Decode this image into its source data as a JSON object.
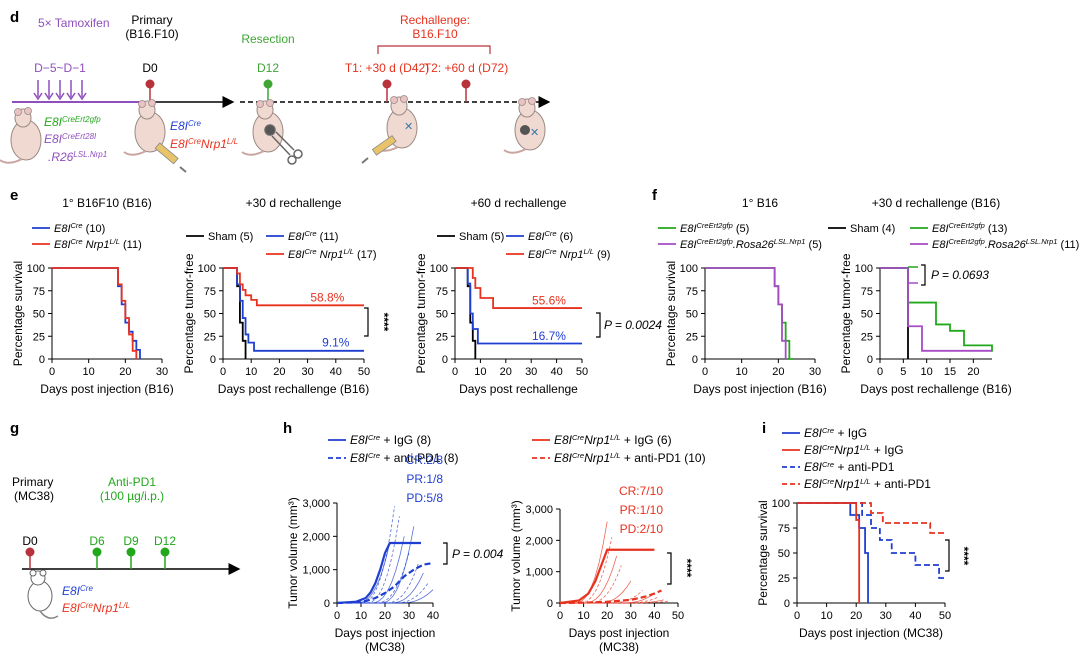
{
  "colors": {
    "blue": "#1f3fd1",
    "red": "#e8321e",
    "green": "#22a81c",
    "purple": "#a64cc6",
    "darkred": "#b8323b",
    "tamox": "#8f4fbf",
    "resection": "#3fa535",
    "text": "#000000"
  },
  "panel_d": {
    "letter": "d",
    "tamoxifen": "5× Tamoxifen",
    "primary_line1": "Primary",
    "primary_line2": "(B16.F10)",
    "resection": "Resection",
    "rechallenge_line1": "Rechallenge:",
    "rechallenge_line2": "B16.F10",
    "day_range": "D−5~D−1",
    "d0": "D0",
    "d12": "D12",
    "t1": "T1: +30 d (D42)",
    "t2": "T2: +60 d (D72)",
    "g1": "E8I",
    "g1s": "CreErt2gfp",
    "g2": "E8I",
    "g2s": "CreErt28I",
    "g3": ".R26",
    "g3s": "LSL.Nrp1",
    "c1": "E8I",
    "c1s": "Cre",
    "c2": "E8I",
    "c2s": "Cre",
    "c2b": "Nrp1",
    "c2bs": "L/L"
  },
  "panel_e": {
    "letter": "e",
    "pval_a": "P = 0.0024",
    "stars": "****"
  },
  "panel_f": {
    "letter": "f",
    "pval": "P = 0.0693"
  },
  "panel_g": {
    "letter": "g",
    "primary_line1": "Primary",
    "primary_line2": "(MC38)",
    "antipd1_line1": "Anti-PD1",
    "antipd1_line2": "(100 µg/i.p.)",
    "d0": "D0",
    "d6": "D6",
    "d9": "D9",
    "d12": "D12",
    "m1": "E8I",
    "m1s": "Cre",
    "m2": "E8I",
    "m2s": "Cre",
    "m2b": "Nrp1",
    "m2bs": "L/L"
  },
  "panel_h": {
    "letter": "h",
    "pval": "P = 0.004",
    "stars": "****"
  },
  "panel_i": {
    "letter": "i",
    "stars": "****"
  },
  "chart_data": [
    {
      "id": "e1",
      "type": "line",
      "subtype": "kaplan-meier",
      "title": "1° B16F10 (B16)",
      "xlabel": "Days post injection (B16)",
      "ylabel": "Percentage survival",
      "xlim": [
        0,
        30
      ],
      "ylim": [
        0,
        100
      ],
      "xticks": [
        0,
        10,
        20,
        30
      ],
      "yticks": [
        0,
        25,
        50,
        75,
        100
      ],
      "series": [
        {
          "name": "E8ICre (10)",
          "label": "E8I",
          "sup": "Cre",
          "tail": " (10)",
          "color": "#1f3fd1",
          "x": [
            0,
            18,
            19,
            20,
            21,
            22,
            23,
            24
          ],
          "y": [
            100,
            80,
            60,
            40,
            30,
            20,
            10,
            0
          ]
        },
        {
          "name": "E8ICre Nrp1L/L (11)",
          "label": "E8I",
          "sup": "Cre",
          "label2": " Nrp1",
          "sup2": "L/L",
          "tail": " (11)",
          "color": "#e8321e",
          "x": [
            0,
            18,
            19,
            20,
            21,
            22,
            23
          ],
          "y": [
            100,
            82,
            64,
            45,
            27,
            9,
            0
          ]
        }
      ]
    },
    {
      "id": "e2",
      "type": "line",
      "subtype": "kaplan-meier",
      "title": "+30 d rechallenge",
      "xlabel": "Days post rechallenge (B16)",
      "ylabel": "Percentage tumor-free",
      "xlim": [
        0,
        50
      ],
      "ylim": [
        0,
        100
      ],
      "xticks": [
        0,
        10,
        20,
        30,
        40,
        50
      ],
      "yticks": [
        0,
        25,
        50,
        75,
        100
      ],
      "annotations": [
        {
          "text": "58.8%",
          "x": 37,
          "y": 63,
          "color": "#e8321e"
        },
        {
          "text": "9.1%",
          "x": 40,
          "y": 14,
          "color": "#1f3fd1"
        }
      ],
      "series": [
        {
          "name": "Sham (5)",
          "label": "Sham (5)",
          "color": "#000000",
          "x": [
            0,
            5,
            6,
            7,
            8
          ],
          "y": [
            100,
            80,
            40,
            20,
            0
          ]
        },
        {
          "name": "E8ICre (11)",
          "label": "E8I",
          "sup": "Cre",
          "tail": " (11)",
          "color": "#1f3fd1",
          "x": [
            0,
            5,
            6,
            7,
            8,
            9,
            11,
            50
          ],
          "y": [
            100,
            82,
            64,
            45,
            27,
            18,
            9,
            9
          ]
        },
        {
          "name": "E8ICre Nrp1L/L (17)",
          "label": "E8I",
          "sup": "Cre",
          "label2": " Nrp1",
          "sup2": "L/L",
          "tail": " (17)",
          "color": "#e8321e",
          "x": [
            0,
            5,
            6,
            7,
            8,
            10,
            12,
            50
          ],
          "y": [
            100,
            94,
            82,
            76,
            70,
            65,
            59,
            59
          ]
        }
      ]
    },
    {
      "id": "e3",
      "type": "line",
      "subtype": "kaplan-meier",
      "title": "+60 d rechallenge",
      "xlabel": "Days post rechallenge",
      "ylabel": "Percentage tumor-free",
      "xlim": [
        0,
        50
      ],
      "ylim": [
        0,
        100
      ],
      "xticks": [
        0,
        10,
        20,
        30,
        40,
        50
      ],
      "yticks": [
        0,
        25,
        50,
        75,
        100
      ],
      "annotations": [
        {
          "text": "55.6%",
          "x": 37,
          "y": 60,
          "color": "#e8321e"
        },
        {
          "text": "16.7%",
          "x": 37,
          "y": 21,
          "color": "#1f3fd1"
        }
      ],
      "series": [
        {
          "name": "Sham (5)",
          "label": "Sham (5)",
          "color": "#000000",
          "x": [
            0,
            5,
            6,
            7,
            8
          ],
          "y": [
            100,
            80,
            40,
            20,
            0
          ]
        },
        {
          "name": "E8ICre (6)",
          "label": "E8I",
          "sup": "Cre",
          "tail": " (6)",
          "color": "#1f3fd1",
          "x": [
            0,
            5,
            6,
            7,
            9,
            50
          ],
          "y": [
            100,
            83,
            50,
            33,
            17,
            17
          ]
        },
        {
          "name": "E8ICre Nrp1L/L (9)",
          "label": "E8I",
          "sup": "Cre",
          "label2": " Nrp1",
          "sup2": "L/L",
          "tail": " (9)",
          "color": "#e8321e",
          "x": [
            0,
            7,
            8,
            10,
            15,
            50
          ],
          "y": [
            100,
            89,
            78,
            67,
            56,
            56
          ]
        }
      ]
    },
    {
      "id": "f1",
      "type": "line",
      "subtype": "kaplan-meier",
      "title": "1° B16",
      "xlabel": "Days post injection (B16)",
      "ylabel": "Percentage survival",
      "xlim": [
        0,
        30
      ],
      "ylim": [
        0,
        100
      ],
      "xticks": [
        0,
        10,
        20,
        30
      ],
      "yticks": [
        0,
        25,
        50,
        75,
        100
      ],
      "series": [
        {
          "name": "E8ICreErt2gfp (5)",
          "label": "E8I",
          "sup": "CreErt2gfp",
          "tail": " (5)",
          "color": "#22a81c",
          "x": [
            0,
            19,
            20,
            21,
            22,
            23,
            24
          ],
          "y": [
            100,
            80,
            60,
            40,
            20,
            0,
            0
          ]
        },
        {
          "name": "E8ICreErt2gfp.Rosa26LSL.Nrp1 (5)",
          "label": "E8I",
          "sup": "CreErt2gfp",
          "label2": ".Rosa26",
          "sup2": "LSL.Nrp1",
          "tail": " (5)",
          "color": "#a64cc6",
          "x": [
            0,
            19,
            20,
            21,
            22
          ],
          "y": [
            100,
            80,
            60,
            20,
            0
          ]
        }
      ]
    },
    {
      "id": "f2",
      "type": "line",
      "subtype": "kaplan-meier",
      "title": "+30 d rechallenge (B16)",
      "xlabel": "Days post rechallenge (B16)",
      "ylabel": "Percentage tumor-free",
      "xlim": [
        0,
        24
      ],
      "ylim": [
        0,
        100
      ],
      "xticks": [
        0,
        5,
        10,
        15,
        20
      ],
      "yticks": [
        0,
        25,
        50,
        75,
        100
      ],
      "series": [
        {
          "name": "Sham (4)",
          "label": "Sham (4)",
          "color": "#000000",
          "x": [
            0,
            6
          ],
          "y": [
            100,
            0
          ]
        },
        {
          "name": "E8ICreErt2gfp (13)",
          "label": "E8I",
          "sup": "CreErt2gfp",
          "tail": " (13)",
          "color": "#22a81c",
          "x": [
            0,
            6,
            10,
            12,
            15,
            18,
            24
          ],
          "y": [
            100,
            62,
            62,
            38,
            31,
            15,
            8
          ]
        },
        {
          "name": "E8ICreErt2gfp.Rosa26LSL.Nrp1 (11)",
          "label": "E8I",
          "sup": "CreErt2gfp",
          "label2": ".Rosa26",
          "sup2": "LSL.Nrp1",
          "tail": " (11)",
          "color": "#a64cc6",
          "x": [
            0,
            6,
            9,
            24
          ],
          "y": [
            100,
            36,
            9,
            9
          ]
        }
      ]
    },
    {
      "id": "h1",
      "type": "line",
      "title": "",
      "xlabel": "Days post injection (MC38)",
      "ylabel": "Tumor volume (mm³)",
      "xlim": [
        0,
        40
      ],
      "ylim": [
        0,
        3000
      ],
      "xticks": [
        0,
        10,
        20,
        30,
        40
      ],
      "yticks": [
        0,
        1000,
        2000,
        3000
      ],
      "yticklabels": [
        "0",
        "1,000",
        "2,000",
        "3,000"
      ],
      "annotations": [
        {
          "text": "CR:2/8",
          "color": "#1f3fd1"
        },
        {
          "text": "PR:1/8",
          "color": "#1f3fd1"
        },
        {
          "text": "PD:5/8",
          "color": "#1f3fd1"
        }
      ],
      "series": [
        {
          "name": "E8ICre + IgG (8)",
          "label": "E8I",
          "sup": "Cre",
          "tail": " + IgG (8)",
          "color": "#1f3fd1",
          "dash": false,
          "x": [
            0,
            8,
            12,
            14,
            16,
            18,
            20,
            22,
            24,
            30,
            35
          ],
          "y": [
            0,
            40,
            150,
            320,
            600,
            1000,
            1500,
            1800,
            1800,
            1800,
            1800
          ]
        },
        {
          "name": "E8ICre + anti-PD1 (8)",
          "label": "E8I",
          "sup": "Cre",
          "tail": " + anti-PD1 (8)",
          "color": "#1f3fd1",
          "dash": true,
          "x": [
            0,
            8,
            12,
            16,
            20,
            24,
            28,
            32,
            36,
            40
          ],
          "y": [
            0,
            20,
            60,
            150,
            300,
            500,
            800,
            1000,
            1150,
            1200
          ]
        }
      ]
    },
    {
      "id": "h2",
      "type": "line",
      "title": "",
      "xlabel": "Days post injection",
      "ylabel": "Tumor volume (mm³)",
      "xlim": [
        0,
        50
      ],
      "ylim": [
        0,
        3000
      ],
      "xticks": [
        0,
        10,
        20,
        30,
        40,
        50
      ],
      "yticks": [
        0,
        1000,
        2000,
        3000
      ],
      "yticklabels": [
        "0",
        "1,000",
        "2,000",
        "3,000"
      ],
      "annotations": [
        {
          "text": "CR:7/10",
          "color": "#e8321e"
        },
        {
          "text": "PR:1/10",
          "color": "#e8321e"
        },
        {
          "text": "PD:2/10",
          "color": "#e8321e"
        }
      ],
      "series": [
        {
          "name": "E8ICreNrp1L/L + IgG (6)",
          "label": "E8I",
          "sup": "Cre",
          "label2": "Nrp1",
          "sup2": "L/L",
          "tail": " + IgG (6)",
          "color": "#e8321e",
          "dash": false,
          "x": [
            0,
            8,
            12,
            15,
            18,
            20,
            22,
            30,
            40
          ],
          "y": [
            0,
            80,
            300,
            700,
            1300,
            1700,
            1700,
            1700,
            1700
          ]
        },
        {
          "name": "E8ICreNrp1L/L + anti-PD1 (10)",
          "label": "E8I",
          "sup": "Cre",
          "label2": "Nrp1",
          "sup2": "L/L",
          "tail": " + anti-PD1 (10)",
          "color": "#e8321e",
          "dash": true,
          "x": [
            0,
            10,
            20,
            30,
            36,
            40,
            43
          ],
          "y": [
            0,
            10,
            40,
            100,
            200,
            300,
            400
          ]
        }
      ]
    },
    {
      "id": "i1",
      "type": "line",
      "subtype": "kaplan-meier",
      "title": "",
      "xlabel": "Days post injection (MC38)",
      "ylabel": "Percentage survival",
      "xlim": [
        0,
        50
      ],
      "ylim": [
        0,
        100
      ],
      "xticks": [
        0,
        10,
        20,
        30,
        40,
        50
      ],
      "yticks": [
        0,
        25,
        50,
        75,
        100
      ],
      "series": [
        {
          "name": "E8ICre + IgG",
          "label": "E8I",
          "sup": "Cre",
          "tail": " + IgG",
          "color": "#1f3fd1",
          "dash": false,
          "x": [
            0,
            18,
            21,
            23,
            24
          ],
          "y": [
            100,
            88,
            75,
            50,
            0
          ]
        },
        {
          "name": "E8ICreNrp1L/L + IgG",
          "label": "E8I",
          "sup": "Cre",
          "label2": "Nrp1",
          "sup2": "L/L",
          "tail": " + IgG",
          "color": "#e8321e",
          "dash": false,
          "x": [
            0,
            20,
            21
          ],
          "y": [
            100,
            83,
            0
          ]
        },
        {
          "name": "E8ICre + anti-PD1",
          "label": "E8I",
          "sup": "Cre",
          "tail": " + anti-PD1",
          "color": "#1f3fd1",
          "dash": true,
          "x": [
            0,
            22,
            25,
            28,
            32,
            40,
            48,
            50
          ],
          "y": [
            100,
            88,
            75,
            63,
            50,
            38,
            25,
            25
          ]
        },
        {
          "name": "E8ICreNrp1L/L + anti-PD1",
          "label": "E8I",
          "sup": "Cre",
          "label2": "Nrp1",
          "sup2": "L/L",
          "tail": " + anti-PD1",
          "color": "#e8321e",
          "dash": true,
          "x": [
            0,
            25,
            29,
            45,
            50
          ],
          "y": [
            100,
            90,
            80,
            70,
            70
          ]
        }
      ]
    }
  ]
}
